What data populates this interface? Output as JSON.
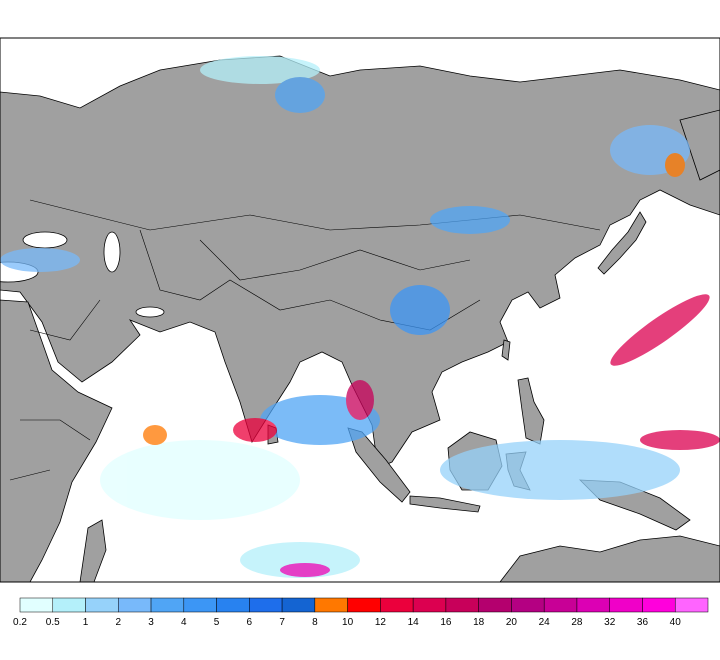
{
  "colorbar": {
    "levels": [
      0.2,
      0.5,
      1,
      2,
      3,
      4,
      5,
      6,
      7,
      8,
      10,
      12,
      14,
      16,
      18,
      20,
      24,
      28,
      32,
      36,
      40
    ],
    "colors": [
      "#e1ffff",
      "#b4f0fa",
      "#96d2fa",
      "#78b9fa",
      "#50a5f5",
      "#3c96f5",
      "#2882f0",
      "#1e6eeb",
      "#1464d2",
      "#ff7800",
      "#ff0000",
      "#eb003c",
      "#dc0050",
      "#c8005a",
      "#b4006e",
      "#b40082",
      "#c80096",
      "#dc00b4",
      "#f000c8",
      "#ff00dc",
      "#ff64ff"
    ]
  }
}
